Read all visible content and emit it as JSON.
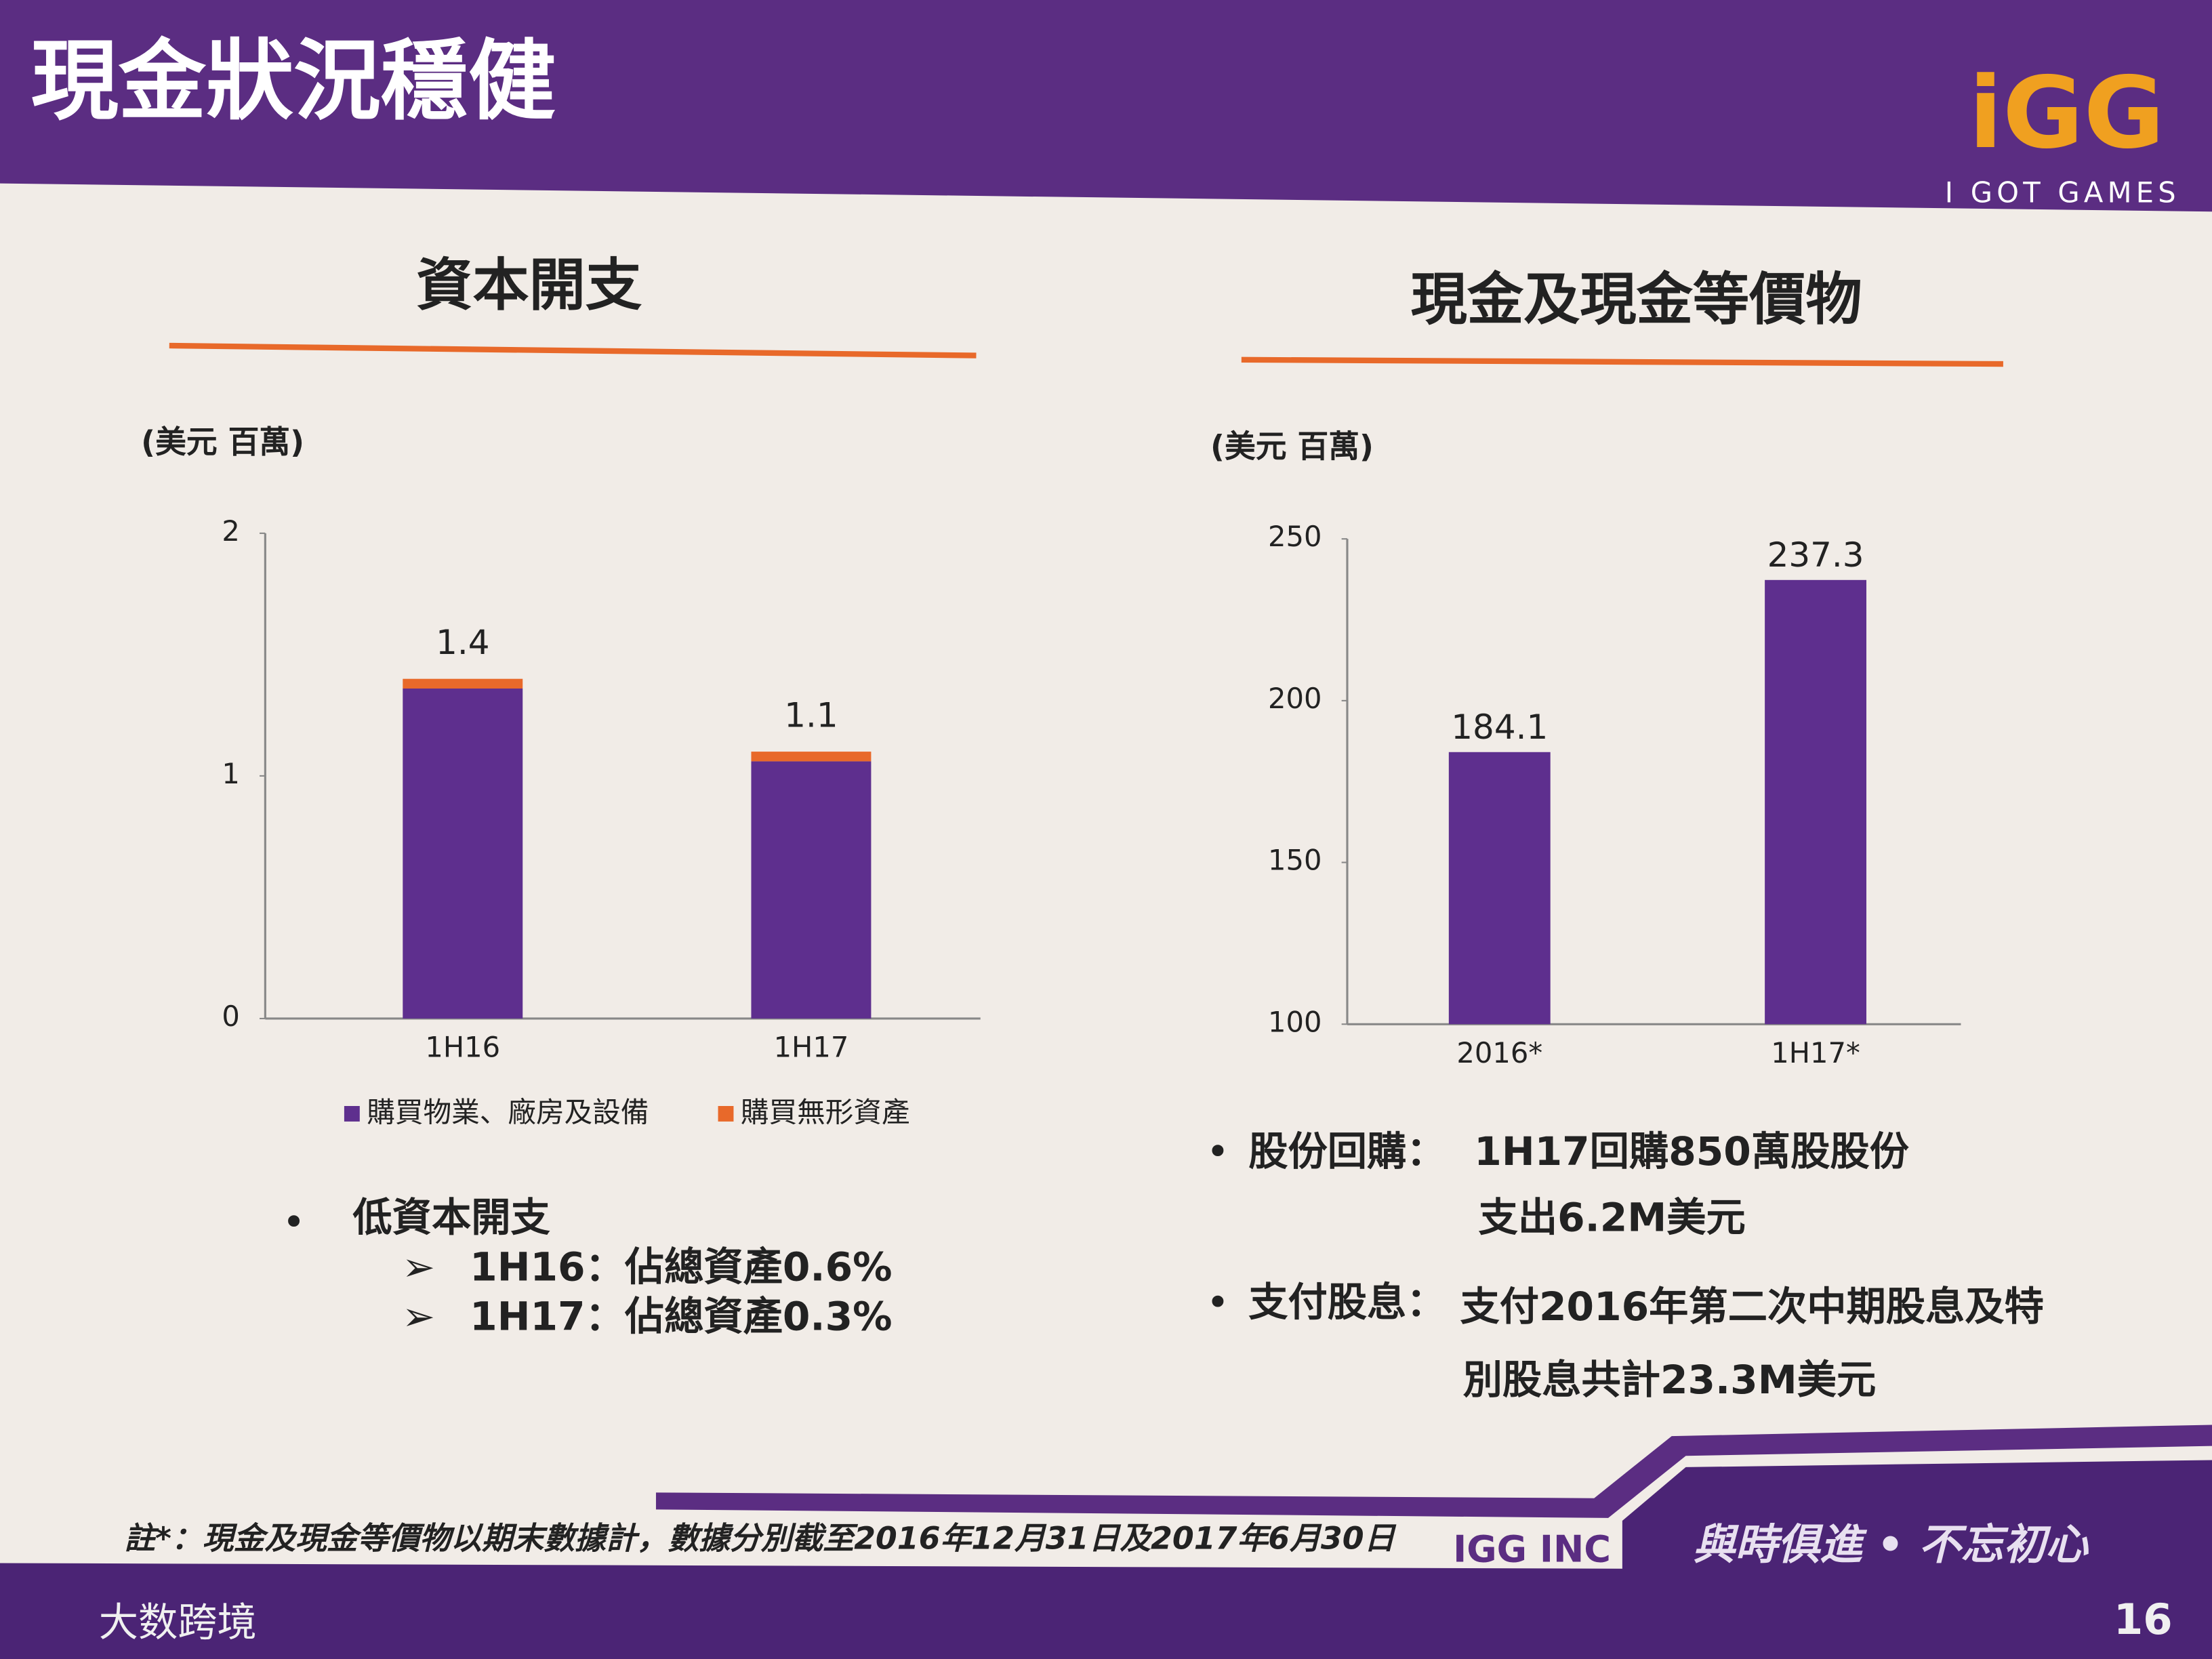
{
  "header": {
    "title": "現金狀況穩健",
    "logo": "iGG",
    "logo_tagline": "I GOT GAMES"
  },
  "chart_data": [
    {
      "type": "bar",
      "title": "資本開支",
      "unit_label": "(美元 百萬)",
      "categories": [
        "1H16",
        "1H17"
      ],
      "series": [
        {
          "name": "購買物業、廠房及設備",
          "color": "#5e2f8e",
          "values": [
            1.36,
            1.06
          ]
        },
        {
          "name": "購買無形資產",
          "color": "#e8692a",
          "values": [
            0.04,
            0.04
          ]
        }
      ],
      "totals": [
        1.4,
        1.1
      ],
      "ylim": [
        0,
        2
      ],
      "yticks": [
        0,
        1,
        2
      ],
      "legend": "bottom"
    },
    {
      "type": "bar",
      "title": "現金及現金等價物",
      "unit_label": "(美元 百萬)",
      "categories": [
        "2016*",
        "1H17*"
      ],
      "values": [
        184.1,
        237.3
      ],
      "color": "#5e2f8e",
      "ylim": [
        100,
        250
      ],
      "yticks": [
        100,
        150,
        200,
        250
      ]
    }
  ],
  "left_bullets": {
    "heading": "低資本開支",
    "items": [
      "1H16：佔總資產0.6%",
      "1H17：佔總資產0.3%"
    ]
  },
  "right_bullets": [
    {
      "label": "股份回購：",
      "lines": [
        "1H17回購850萬股股份",
        "支出6.2M美元"
      ]
    },
    {
      "label": "支付股息：",
      "lines": [
        "支付2016年第二次中期股息及特",
        "別股息共計23.3M美元"
      ]
    }
  ],
  "footer": {
    "note": "註*：現金及現金等價物以期末數據計，數據分別截至2016年12月31日及2017年6月30日",
    "company": "IGG INC",
    "slogan": "與時俱進 • 不忘初心",
    "page": "16",
    "watermark": "大数跨境"
  }
}
